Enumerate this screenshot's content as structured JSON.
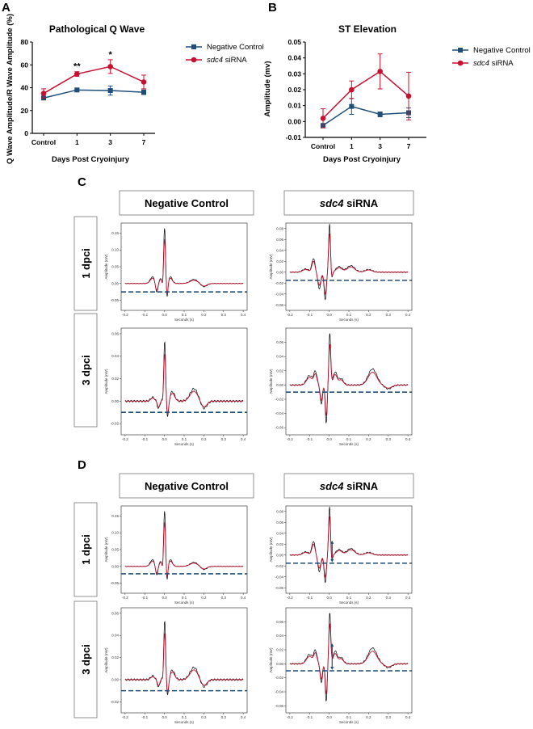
{
  "panels": {
    "A": "A",
    "B": "B",
    "C": "C",
    "D": "D"
  },
  "chart_data": [
    {
      "type": "line",
      "panel": "A",
      "title": "Pathological Q Wave",
      "xlabel": "Days Post Cryoinjury",
      "ylabel": "Q Wave Amplitude/R Wave Amplitude (%)",
      "categories": [
        "Control",
        "1",
        "3",
        "7"
      ],
      "ylim": [
        0,
        80
      ],
      "yticks": [
        "0",
        "20",
        "40",
        "60",
        "80"
      ],
      "series": [
        {
          "name": "Negative Control",
          "color": "#1f4e79",
          "marker": "square",
          "values": [
            31,
            38,
            37.5,
            36
          ],
          "err": [
            1.5,
            1.5,
            4,
            2
          ]
        },
        {
          "name": "sdc4 siRNA",
          "name_italic": "sdc4",
          "name_rest": " siRNA",
          "color": "#c8102e",
          "marker": "circle",
          "values": [
            35,
            52,
            58.5,
            45
          ],
          "err": [
            4,
            2,
            6,
            6
          ]
        }
      ],
      "annotations": [
        {
          "category": "1",
          "text": "**"
        },
        {
          "category": "3",
          "text": "*"
        }
      ],
      "legend": "right"
    },
    {
      "type": "line",
      "panel": "B",
      "title": "ST Elevation",
      "xlabel": "Days Post Cryoinjury",
      "ylabel": "Amplitude (mv)",
      "categories": [
        "Control",
        "1",
        "3",
        "7"
      ],
      "ylim": [
        -0.01,
        0.05
      ],
      "yticks": [
        "-0.01",
        "0.00",
        "0.01",
        "0.02",
        "0.03",
        "0.04",
        "0.05"
      ],
      "series": [
        {
          "name": "Negative Control",
          "color": "#1f4e79",
          "marker": "square",
          "values": [
            -0.0025,
            0.0095,
            0.0045,
            0.0055
          ],
          "err": [
            0.001,
            0.005,
            0.0015,
            0.003
          ]
        },
        {
          "name": "sdc4 siRNA",
          "name_italic": "sdc4",
          "name_rest": " siRNA",
          "color": "#c8102e",
          "marker": "circle",
          "values": [
            0.002,
            0.02,
            0.0315,
            0.016
          ],
          "err": [
            0.006,
            0.0055,
            0.011,
            0.015
          ]
        }
      ],
      "legend": "right"
    }
  ],
  "ecg": {
    "col_headers": {
      "neg": "Negative Control",
      "sdc4_italic": "sdc4",
      "sdc4_rest": " siRNA"
    },
    "row_labels": {
      "d1": "1 dpci",
      "d3": "3 dpci"
    },
    "xlabel": "Seconds (s)",
    "ylabel": "Amplitude (mV)",
    "xticks": [
      "-0.2",
      "-0.1",
      "0.0",
      "0.1",
      "0.2",
      "0.3",
      "0.4"
    ],
    "yticks_d1_neg": [
      "0.15",
      "0.10",
      "0.05",
      "0.00",
      "-0.05"
    ],
    "yticks_d1_sdc4": [
      "0.08",
      "0.06",
      "0.04",
      "0.02",
      "0.00",
      "-0.02",
      "-0.04",
      "-0.06"
    ],
    "yticks_d3_neg": [
      "0.06",
      "0.04",
      "0.02",
      "0.00",
      "-0.02"
    ],
    "yticks_d3_sdc4": [
      "0.06",
      "0.04",
      "0.02",
      "0.00",
      "-0.02",
      "-0.04",
      "-0.06"
    ],
    "colors": {
      "raw": "#000000",
      "filtered": "#c8102e",
      "baseline": "#1f4e79"
    }
  }
}
